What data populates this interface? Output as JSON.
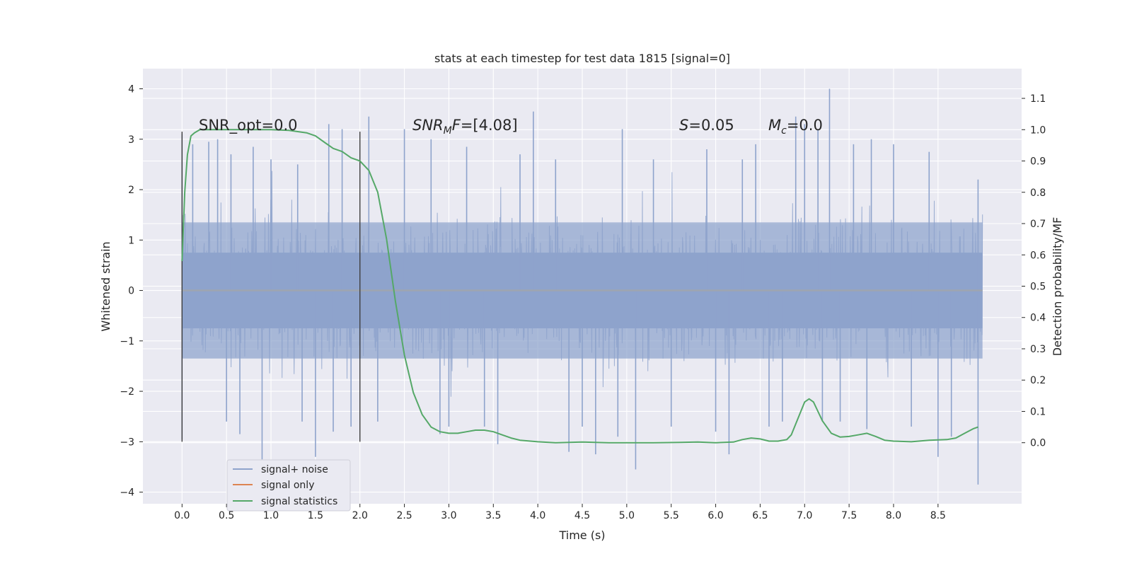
{
  "chart_data": {
    "type": "line",
    "title": "stats at each timestep for test data 1815 [signal=0]",
    "xlabel": "Time (s)",
    "ylabel": "Whitened strain",
    "ylabel_right": "Detection probability/MF",
    "xlim": [
      -0.44,
      9.44
    ],
    "ylim": [
      -4.23,
      4.4
    ],
    "ylim_right": [
      -0.195,
      1.195
    ],
    "x_ticks": [
      "0.0",
      "0.5",
      "1.0",
      "1.5",
      "2.0",
      "2.5",
      "3.0",
      "3.5",
      "4.0",
      "4.5",
      "5.0",
      "5.5",
      "6.0",
      "6.5",
      "7.0",
      "7.5",
      "8.0",
      "8.5"
    ],
    "y_ticks": [
      "−4",
      "−3",
      "−2",
      "−1",
      "0",
      "1",
      "2",
      "3",
      "4"
    ],
    "y_right_ticks": [
      "0.0",
      "0.1",
      "0.2",
      "0.3",
      "0.4",
      "0.5",
      "0.6",
      "0.7",
      "0.8",
      "0.9",
      "1.0",
      "1.1"
    ],
    "annotations": {
      "snr_opt": "SNR_opt=0.0",
      "snr_mf_name": "SNR",
      "snr_mf_sub": "M",
      "snr_mf_post": "F",
      "snr_mf_value": "=[4.08]",
      "s_name": "S",
      "s_value": "=0.05",
      "mc_name": "M",
      "mc_sub": "c",
      "mc_value": "=0.0"
    },
    "vlines": [
      {
        "x": 0.0,
        "ymin": -3.0,
        "ymax": 3.15
      },
      {
        "x": 2.0,
        "ymin": -3.0,
        "ymax": 3.15
      }
    ],
    "series": [
      {
        "name": "signal+ noise",
        "color": "#8ea3cc",
        "description": "whitened noise, approx. unit variance, plotted 0.0-9.0 s",
        "noise_band": [
          -1.35,
          1.35
        ],
        "core_band": [
          -0.75,
          0.75
        ],
        "spikes": [
          {
            "x": 0.0,
            "y": 3.1
          },
          {
            "x": 0.0,
            "y": -2.95
          },
          {
            "x": 0.12,
            "y": 2.9
          },
          {
            "x": 0.3,
            "y": 2.95
          },
          {
            "x": 0.4,
            "y": 3.0
          },
          {
            "x": 0.5,
            "y": -2.6
          },
          {
            "x": 0.55,
            "y": 2.7
          },
          {
            "x": 0.65,
            "y": -2.85
          },
          {
            "x": 0.8,
            "y": 2.85
          },
          {
            "x": 0.9,
            "y": -3.35
          },
          {
            "x": 1.0,
            "y": 2.6
          },
          {
            "x": 1.3,
            "y": 2.5
          },
          {
            "x": 1.35,
            "y": -2.6
          },
          {
            "x": 1.5,
            "y": -3.3
          },
          {
            "x": 1.65,
            "y": 3.3
          },
          {
            "x": 1.7,
            "y": -2.8
          },
          {
            "x": 1.8,
            "y": 3.2
          },
          {
            "x": 1.9,
            "y": -2.7
          },
          {
            "x": 2.1,
            "y": 3.45
          },
          {
            "x": 2.2,
            "y": -2.6
          },
          {
            "x": 2.5,
            "y": 3.2
          },
          {
            "x": 2.8,
            "y": 3.0
          },
          {
            "x": 2.9,
            "y": -2.85
          },
          {
            "x": 3.0,
            "y": -2.7
          },
          {
            "x": 3.2,
            "y": 2.85
          },
          {
            "x": 3.4,
            "y": -2.7
          },
          {
            "x": 3.55,
            "y": -3.05
          },
          {
            "x": 3.8,
            "y": 2.7
          },
          {
            "x": 3.95,
            "y": 3.55
          },
          {
            "x": 4.2,
            "y": 2.6
          },
          {
            "x": 4.35,
            "y": -3.2
          },
          {
            "x": 4.5,
            "y": -2.7
          },
          {
            "x": 4.65,
            "y": -3.25
          },
          {
            "x": 4.9,
            "y": -2.9
          },
          {
            "x": 4.95,
            "y": 3.2
          },
          {
            "x": 5.1,
            "y": -3.55
          },
          {
            "x": 5.3,
            "y": 2.6
          },
          {
            "x": 5.5,
            "y": -2.7
          },
          {
            "x": 5.9,
            "y": 2.8
          },
          {
            "x": 6.0,
            "y": -2.8
          },
          {
            "x": 6.15,
            "y": -3.25
          },
          {
            "x": 6.3,
            "y": 2.6
          },
          {
            "x": 6.45,
            "y": 2.9
          },
          {
            "x": 6.6,
            "y": -2.7
          },
          {
            "x": 6.75,
            "y": -2.6
          },
          {
            "x": 6.9,
            "y": 3.45
          },
          {
            "x": 7.0,
            "y": 3.3
          },
          {
            "x": 7.15,
            "y": 3.2
          },
          {
            "x": 7.2,
            "y": -2.6
          },
          {
            "x": 7.28,
            "y": 4.0
          },
          {
            "x": 7.4,
            "y": -2.6
          },
          {
            "x": 7.55,
            "y": 2.9
          },
          {
            "x": 7.7,
            "y": -2.75
          },
          {
            "x": 7.75,
            "y": 3.0
          },
          {
            "x": 8.0,
            "y": 2.9
          },
          {
            "x": 8.2,
            "y": -2.7
          },
          {
            "x": 8.4,
            "y": 2.75
          },
          {
            "x": 8.5,
            "y": -3.3
          },
          {
            "x": 8.65,
            "y": -2.9
          },
          {
            "x": 8.95,
            "y": 2.2
          },
          {
            "x": 8.95,
            "y": -3.85
          }
        ]
      },
      {
        "name": "signal only",
        "color": "#dd8452",
        "x": [
          0.0,
          9.0
        ],
        "y": [
          0.0,
          0.0
        ]
      },
      {
        "name": "signal statistics",
        "color": "#55a868",
        "axis": "right",
        "x": [
          0.0,
          0.03,
          0.06,
          0.1,
          0.14,
          0.2,
          0.3,
          0.5,
          0.8,
          1.0,
          1.2,
          1.4,
          1.5,
          1.6,
          1.7,
          1.8,
          1.9,
          2.0,
          2.1,
          2.2,
          2.3,
          2.4,
          2.5,
          2.6,
          2.7,
          2.8,
          2.9,
          3.0,
          3.1,
          3.2,
          3.3,
          3.4,
          3.5,
          3.6,
          3.7,
          3.8,
          4.0,
          4.2,
          4.5,
          4.8,
          5.0,
          5.3,
          5.6,
          5.8,
          6.0,
          6.2,
          6.3,
          6.4,
          6.5,
          6.6,
          6.7,
          6.8,
          6.85,
          6.9,
          7.0,
          7.05,
          7.1,
          7.15,
          7.2,
          7.3,
          7.4,
          7.5,
          7.6,
          7.7,
          7.8,
          7.9,
          8.0,
          8.2,
          8.4,
          8.6,
          8.7,
          8.8,
          8.9,
          8.95
        ],
        "y": [
          0.58,
          0.8,
          0.92,
          0.98,
          0.99,
          1.0,
          1.0,
          1.0,
          1.0,
          1.0,
          0.998,
          0.99,
          0.98,
          0.96,
          0.94,
          0.93,
          0.91,
          0.9,
          0.87,
          0.8,
          0.65,
          0.45,
          0.28,
          0.16,
          0.09,
          0.05,
          0.035,
          0.03,
          0.03,
          0.035,
          0.04,
          0.04,
          0.035,
          0.025,
          0.015,
          0.008,
          0.003,
          0.0,
          0.002,
          0.0,
          0.0,
          0.0,
          0.001,
          0.002,
          0.0,
          0.002,
          0.01,
          0.015,
          0.012,
          0.005,
          0.005,
          0.01,
          0.025,
          0.06,
          0.13,
          0.14,
          0.13,
          0.1,
          0.07,
          0.03,
          0.018,
          0.02,
          0.025,
          0.03,
          0.02,
          0.008,
          0.005,
          0.003,
          0.008,
          0.01,
          0.015,
          0.03,
          0.045,
          0.05
        ]
      }
    ],
    "legend_position": "lower-left",
    "grid": true
  },
  "colors": {
    "plot_bg": "#eaeaf2",
    "grid": "#ffffff",
    "noise": "#8ea3cc",
    "signal_only": "#dd8452",
    "stats": "#55a868",
    "vline": "#404040",
    "zero_line": "#9ea5b0"
  }
}
